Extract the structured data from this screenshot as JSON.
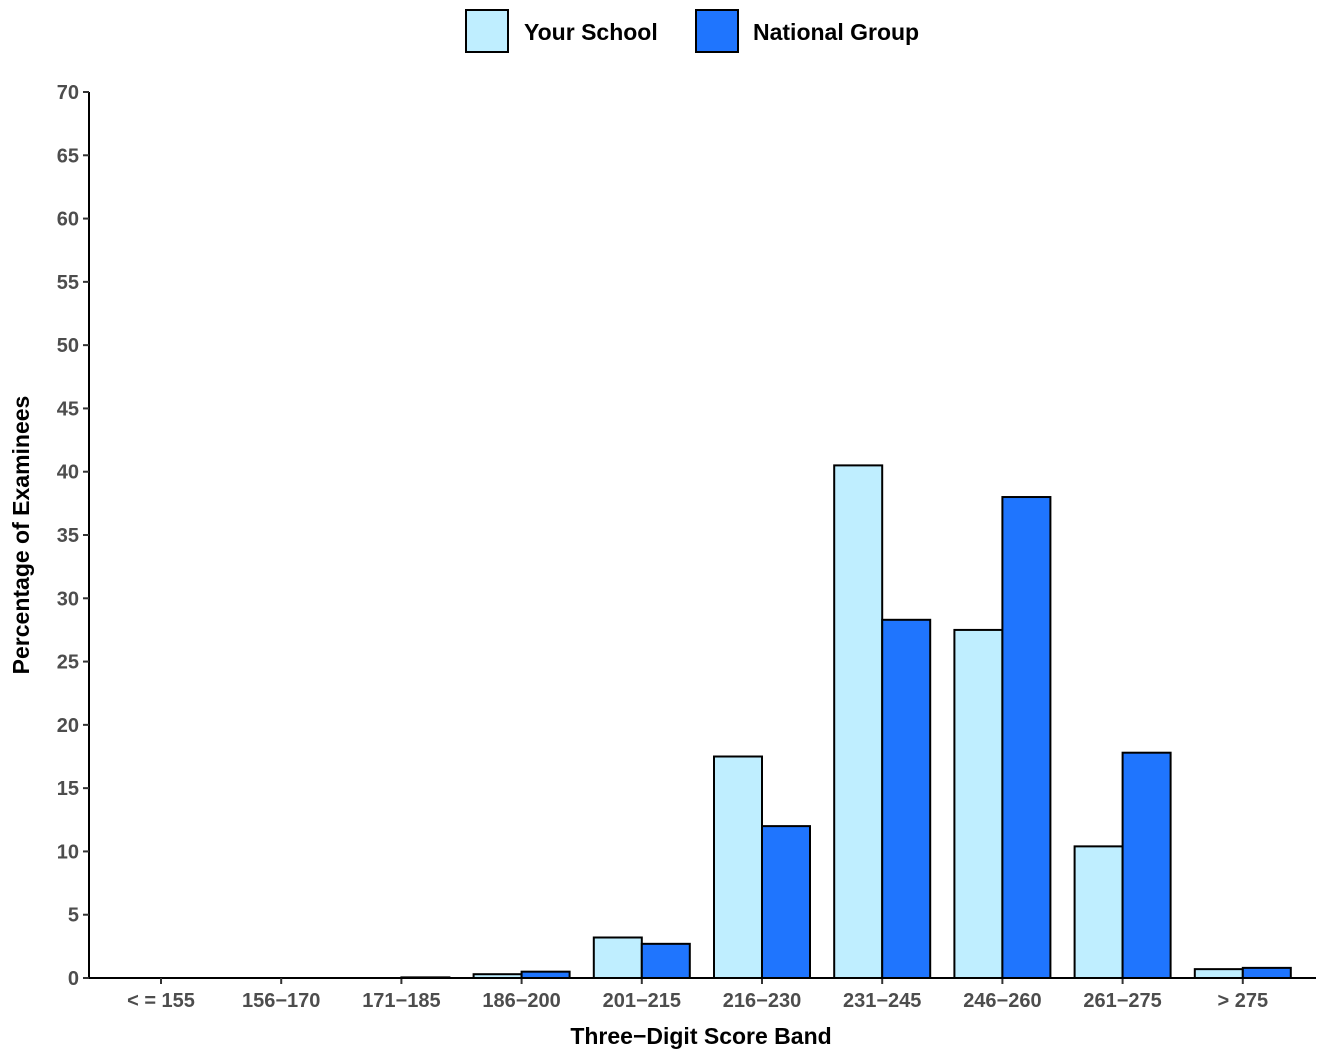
{
  "chart_data": {
    "type": "bar",
    "title": "",
    "xlabel": "Three−Digit Score Band",
    "ylabel": "Percentage of Examinees",
    "ylim": [
      0,
      70
    ],
    "yticks": [
      0,
      5,
      10,
      15,
      20,
      25,
      30,
      35,
      40,
      45,
      50,
      55,
      60,
      65,
      70
    ],
    "categories": [
      "< = 155",
      "156−170",
      "171−185",
      "186−200",
      "201−215",
      "216−230",
      "231−245",
      "246−260",
      "261−275",
      "> 275"
    ],
    "series": [
      {
        "name": "Your School",
        "color": "#bfeeff",
        "values": [
          0,
          0,
          0,
          0.3,
          3.2,
          17.5,
          40.5,
          27.5,
          10.4,
          0.7
        ]
      },
      {
        "name": "National Group",
        "color": "#1f75fe",
        "values": [
          0,
          0,
          0.05,
          0.5,
          2.7,
          12.0,
          28.3,
          38.0,
          17.8,
          0.8
        ]
      }
    ],
    "legend_position": "top-center",
    "grid": false
  }
}
